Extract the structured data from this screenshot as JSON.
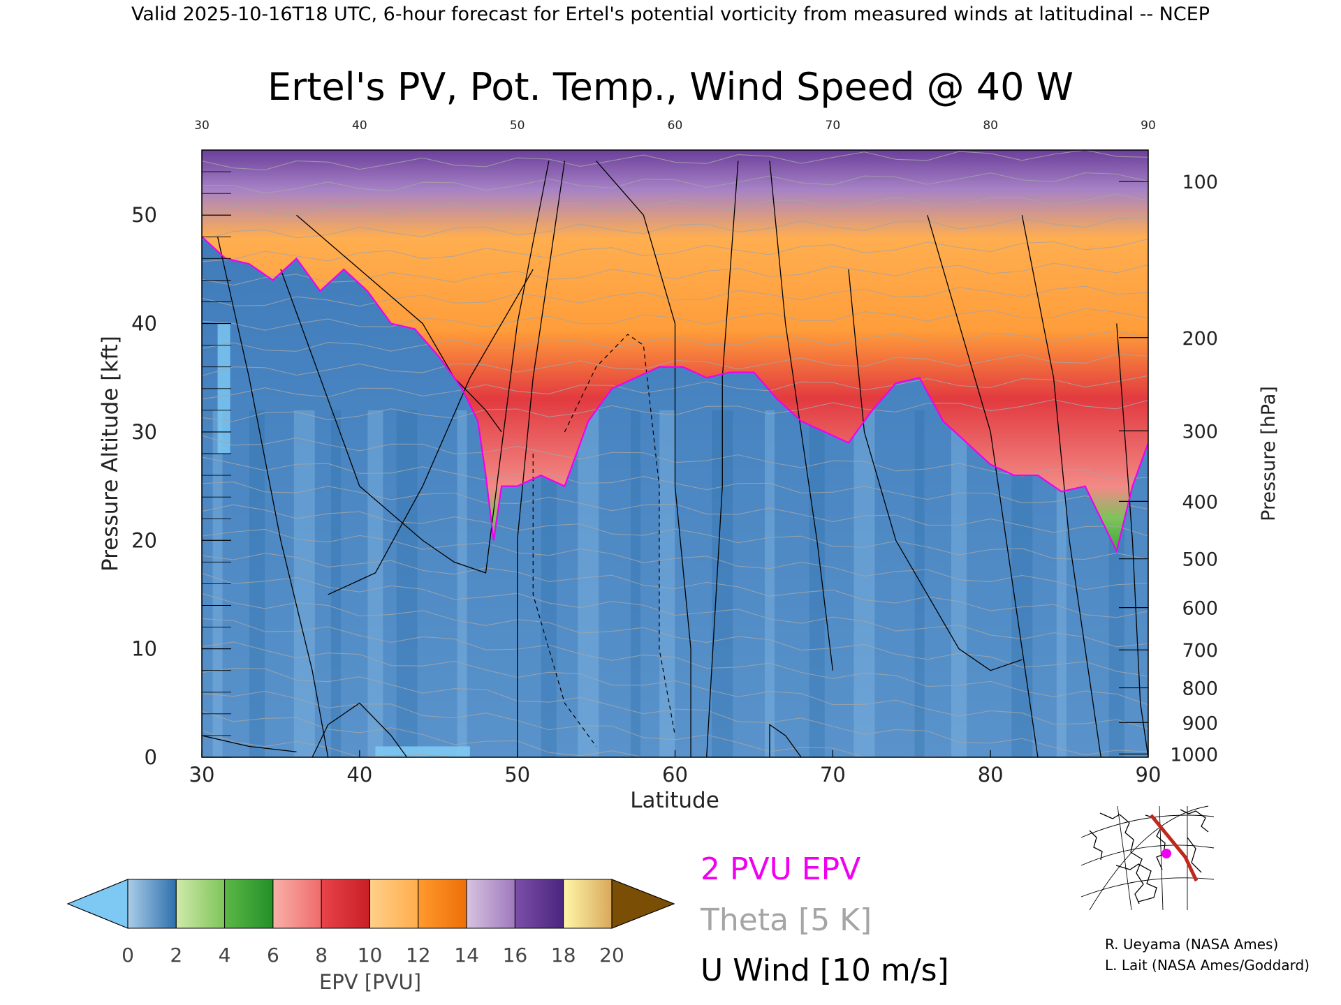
{
  "header": {
    "valid_line": "Valid 2025-10-16T18 UTC, 6-hour forecast for Ertel's potential vorticity from measured winds at latitudinal -- NCEP"
  },
  "chart_data": {
    "type": "heatmap",
    "title": "Ertel's PV, Pot. Temp., Wind Speed @ 40 W",
    "xlabel": "Latitude",
    "ylabel": "Pressure Altitude [kft]",
    "y2label": "Pressure [hPa]",
    "xlim": [
      30,
      90
    ],
    "ylim": [
      0,
      56
    ],
    "x_ticks": [
      "30",
      "40",
      "50",
      "60",
      "70",
      "80",
      "90"
    ],
    "y_ticks": [
      "0",
      "10",
      "20",
      "30",
      "40",
      "50"
    ],
    "pressure_ticks": [
      {
        "label": "100",
        "kft": 53.1
      },
      {
        "label": "200",
        "kft": 38.7
      },
      {
        "label": "300",
        "kft": 30.1
      },
      {
        "label": "400",
        "kft": 23.6
      },
      {
        "label": "500",
        "kft": 18.3
      },
      {
        "label": "600",
        "kft": 13.8
      },
      {
        "label": "700",
        "kft": 9.9
      },
      {
        "label": "800",
        "kft": 6.4
      },
      {
        "label": "900",
        "kft": 3.2
      },
      {
        "label": "1000",
        "kft": 0.3
      }
    ],
    "two_pvu_contour": {
      "lat": [
        30,
        31.5,
        33,
        34.5,
        36,
        37.5,
        39,
        40.5,
        42,
        43.5,
        45,
        46.5,
        47.5,
        48,
        48.5,
        49,
        50,
        51.5,
        53,
        54.5,
        56,
        57.5,
        59,
        60.5,
        62,
        63.5,
        65,
        66.5,
        68,
        69.5,
        71,
        72.5,
        74,
        75.5,
        77,
        78.5,
        80,
        81.5,
        83,
        84.5,
        86,
        87,
        88,
        89,
        90
      ],
      "kft": [
        48,
        46,
        45.5,
        44,
        46,
        43,
        45,
        43,
        40,
        39.5,
        37,
        34,
        31,
        26,
        20,
        25,
        25,
        26,
        25,
        31,
        34,
        35,
        36,
        36,
        35,
        35.5,
        35.5,
        33,
        31,
        30,
        29,
        32,
        34.5,
        35,
        31,
        29,
        27,
        26,
        26,
        24.5,
        25,
        22,
        19,
        25,
        29
      ]
    },
    "colorbar": {
      "label": "EPV [PVU]",
      "tick_labels": [
        "0",
        "2",
        "4",
        "6",
        "8",
        "10",
        "12",
        "14",
        "16",
        "18",
        "20"
      ],
      "under_color": "#7ec9f3",
      "over_color": "#7a4e05",
      "segments": [
        {
          "from": 0,
          "to": 2,
          "colors": [
            "#a9cde8",
            "#2f6fad"
          ]
        },
        {
          "from": 2,
          "to": 4,
          "colors": [
            "#cfeaaa",
            "#7fc45a"
          ]
        },
        {
          "from": 4,
          "to": 6,
          "colors": [
            "#5cb848",
            "#239027"
          ]
        },
        {
          "from": 6,
          "to": 8,
          "colors": [
            "#f9b0a9",
            "#ef6b6b"
          ]
        },
        {
          "from": 8,
          "to": 10,
          "colors": [
            "#e8444a",
            "#c81e24"
          ]
        },
        {
          "from": 10,
          "to": 12,
          "colors": [
            "#ffd08a",
            "#ffad4c"
          ]
        },
        {
          "from": 12,
          "to": 14,
          "colors": [
            "#ff9a2e",
            "#ee6e08"
          ]
        },
        {
          "from": 14,
          "to": 16,
          "colors": [
            "#d7c3e0",
            "#9f79bd"
          ]
        },
        {
          "from": 16,
          "to": 18,
          "colors": [
            "#7b4fa7",
            "#4a2580"
          ]
        },
        {
          "from": 18,
          "to": 20,
          "colors": [
            "#fff6a8",
            "#d9a85c"
          ]
        }
      ]
    }
  },
  "legend": {
    "epv_label": "2 PVU EPV",
    "epv_color": "#f000f0",
    "theta_label": "Theta [5 K]",
    "theta_color": "#a5a5a5",
    "wind_label": "U Wind [10 m/s]",
    "wind_color": "#000000"
  },
  "credits": {
    "line1": "R. Ueyama (NASA Ames)",
    "line2": "L. Lait (NASA Ames/Goddard)"
  },
  "colors": {
    "tropo_blue": "#4f8cc6",
    "strato_green": "#3caa3c",
    "strato_red": "#e8454c",
    "strato_orange": "#ff9e3a",
    "strato_purple": "#8a62b4",
    "track_line": "#c0281e"
  }
}
